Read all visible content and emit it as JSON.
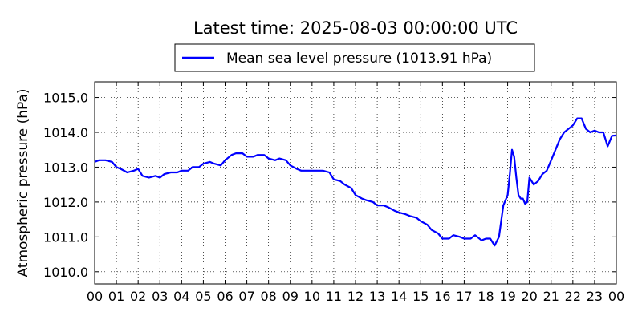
{
  "chart_data": {
    "type": "line",
    "title": "Latest time: 2025-08-03 00:00:00 UTC",
    "xlabel": "",
    "ylabel": "Atmospheric pressure (hPa)",
    "xlim": [
      0,
      24
    ],
    "ylim": [
      1009.65,
      1015.45
    ],
    "grid": true,
    "legend_position": "top-center, above plot",
    "x_ticks": [
      0,
      1,
      2,
      3,
      4,
      5,
      6,
      7,
      8,
      9,
      10,
      11,
      12,
      13,
      14,
      15,
      16,
      17,
      18,
      19,
      20,
      21,
      22,
      23,
      24
    ],
    "x_tick_labels": [
      "00",
      "01",
      "02",
      "03",
      "04",
      "05",
      "06",
      "07",
      "08",
      "09",
      "10",
      "11",
      "12",
      "13",
      "14",
      "15",
      "16",
      "17",
      "18",
      "19",
      "20",
      "21",
      "22",
      "23",
      "00"
    ],
    "y_ticks": [
      1010.0,
      1011.0,
      1012.0,
      1013.0,
      1014.0,
      1015.0
    ],
    "y_tick_labels": [
      "1010.0",
      "1011.0",
      "1012.0",
      "1013.0",
      "1014.0",
      "1015.0"
    ],
    "series": [
      {
        "name": "Mean sea level pressure (1013.91 hPa)",
        "color": "#0000ff",
        "x": [
          0,
          0.2,
          0.5,
          0.8,
          1.0,
          1.2,
          1.5,
          1.8,
          2.0,
          2.2,
          2.5,
          2.8,
          3.0,
          3.2,
          3.5,
          3.8,
          4.0,
          4.3,
          4.5,
          4.8,
          5.0,
          5.3,
          5.5,
          5.8,
          6.0,
          6.3,
          6.5,
          6.8,
          7.0,
          7.3,
          7.5,
          7.8,
          8.0,
          8.3,
          8.5,
          8.8,
          9.0,
          9.3,
          9.5,
          9.8,
          10.0,
          10.3,
          10.5,
          10.8,
          11.0,
          11.3,
          11.5,
          11.8,
          12.0,
          12.3,
          12.5,
          12.8,
          13.0,
          13.3,
          13.5,
          13.8,
          14.0,
          14.3,
          14.5,
          14.8,
          15.0,
          15.3,
          15.5,
          15.8,
          16.0,
          16.3,
          16.5,
          16.8,
          17.0,
          17.3,
          17.5,
          17.8,
          18.0,
          18.2,
          18.4,
          18.6,
          18.8,
          19.0,
          19.1,
          19.2,
          19.3,
          19.4,
          19.5,
          19.6,
          19.7,
          19.8,
          19.9,
          20.0,
          20.2,
          20.4,
          20.6,
          20.8,
          21.0,
          21.2,
          21.4,
          21.6,
          21.8,
          22.0,
          22.2,
          22.4,
          22.6,
          22.8,
          23.0,
          23.2,
          23.4,
          23.6,
          23.8,
          24.0
        ],
        "y": [
          1013.15,
          1013.2,
          1013.2,
          1013.15,
          1013.0,
          1012.95,
          1012.85,
          1012.9,
          1012.95,
          1012.75,
          1012.7,
          1012.75,
          1012.7,
          1012.8,
          1012.85,
          1012.85,
          1012.9,
          1012.9,
          1013.0,
          1013.0,
          1013.1,
          1013.15,
          1013.1,
          1013.05,
          1013.2,
          1013.35,
          1013.4,
          1013.4,
          1013.3,
          1013.3,
          1013.35,
          1013.35,
          1013.25,
          1013.2,
          1013.25,
          1013.2,
          1013.05,
          1012.95,
          1012.9,
          1012.9,
          1012.9,
          1012.9,
          1012.9,
          1012.85,
          1012.65,
          1012.6,
          1012.5,
          1012.4,
          1012.2,
          1012.1,
          1012.05,
          1012.0,
          1011.9,
          1011.9,
          1011.85,
          1011.75,
          1011.7,
          1011.65,
          1011.6,
          1011.55,
          1011.45,
          1011.35,
          1011.2,
          1011.1,
          1010.95,
          1010.95,
          1011.05,
          1011.0,
          1010.95,
          1010.95,
          1011.05,
          1010.9,
          1010.95,
          1010.95,
          1010.75,
          1011.0,
          1011.9,
          1012.2,
          1012.8,
          1013.5,
          1013.3,
          1012.7,
          1012.2,
          1012.1,
          1012.1,
          1011.95,
          1012.0,
          1012.7,
          1012.5,
          1012.6,
          1012.8,
          1012.9,
          1013.2,
          1013.5,
          1013.8,
          1014.0,
          1014.1,
          1014.2,
          1014.4,
          1014.4,
          1014.1,
          1014.0,
          1014.05,
          1014.0,
          1014.0,
          1013.6,
          1013.9,
          1013.91
        ]
      }
    ]
  }
}
